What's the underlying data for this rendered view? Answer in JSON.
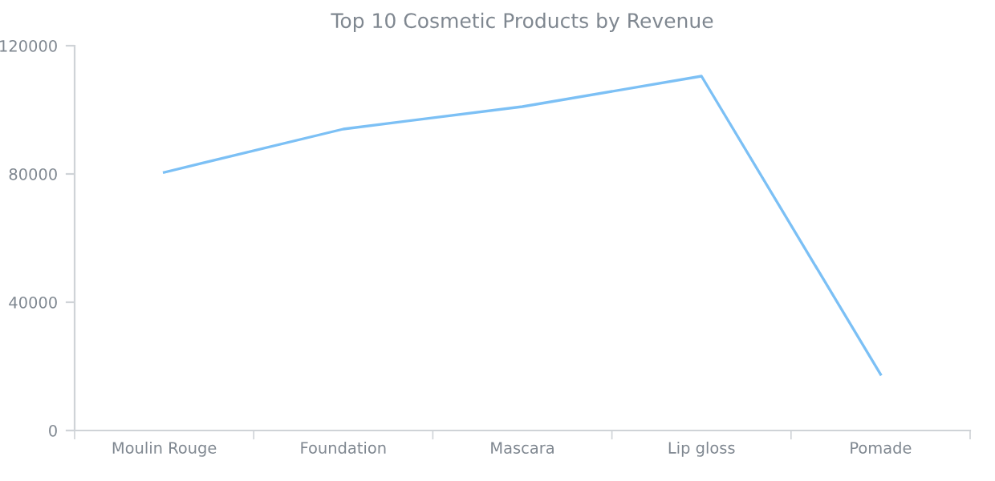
{
  "chart_data": {
    "type": "line",
    "title": "Top 10 Cosmetic Products by Revenue",
    "categories": [
      "Moulin Rouge",
      "Foundation",
      "Mascara",
      "Lip gloss",
      "Pomade"
    ],
    "series": [
      {
        "color": "#7cc0f5",
        "values": [
          80500,
          94000,
          101000,
          110500,
          17500
        ]
      }
    ],
    "ylim": [
      0,
      120000
    ],
    "yticks": [
      0,
      40000,
      80000,
      120000
    ],
    "grid": false,
    "marker": "none",
    "line_style": "solid"
  }
}
